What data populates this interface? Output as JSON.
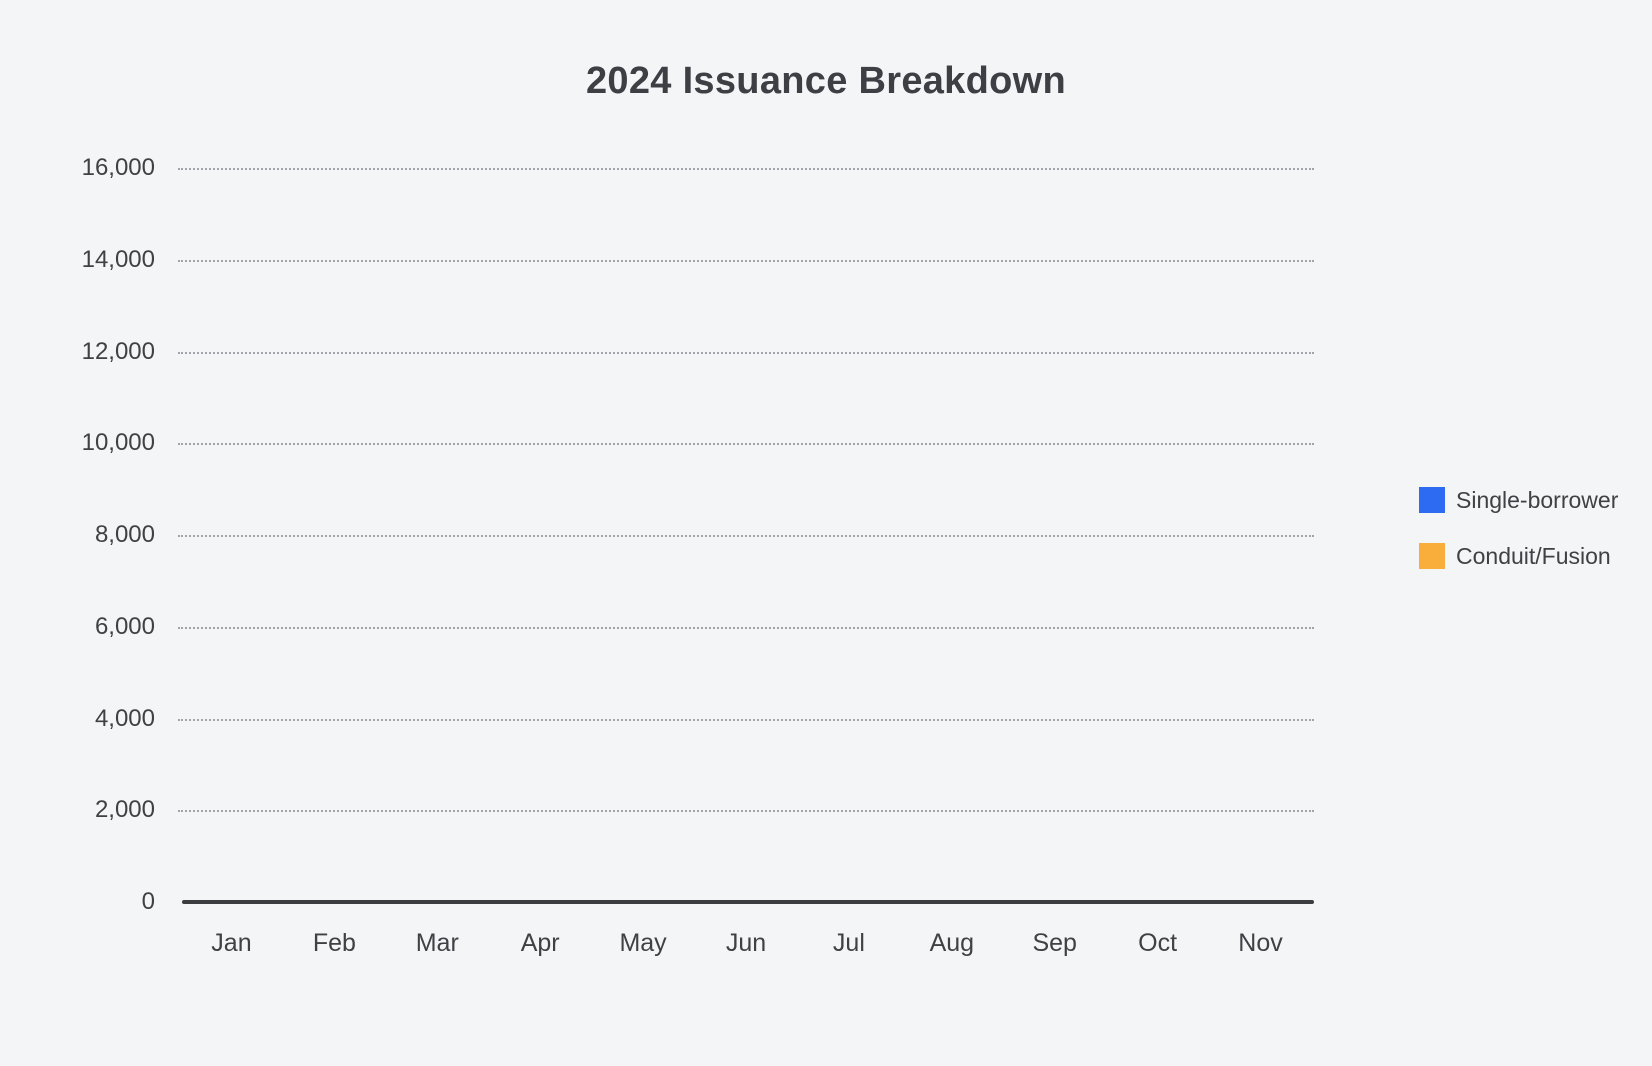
{
  "chart": {
    "title": "2024 Issuance Breakdown",
    "background_color": "#f4f5f7",
    "axis_line_color": "#3c3d41",
    "gridline_color": "#a2a3a9",
    "text_color": "#3f4145",
    "legend": [
      {
        "label": "Single-borrower",
        "color": "#2d6bf2"
      },
      {
        "label": "Conduit/Fusion",
        "color": "#f9ae3b"
      }
    ]
  },
  "chart_data": {
    "type": "bar",
    "stacked": true,
    "title": "2024 Issuance Breakdown",
    "categories": [
      "Jan",
      "Feb",
      "Mar",
      "Apr",
      "May",
      "Jun",
      "Jul",
      "Aug",
      "Sep",
      "Oct",
      "Nov"
    ],
    "series": [
      {
        "name": "Single-borrower",
        "color": "#2d6bf2",
        "values": []
      },
      {
        "name": "Conduit/Fusion",
        "color": "#f9ae3b",
        "values": []
      }
    ],
    "no_data_rendered": true,
    "xlabel": "",
    "ylabel": "",
    "ylim": [
      0,
      16000
    ],
    "y_ticks": [
      0,
      2000,
      4000,
      6000,
      8000,
      10000,
      12000,
      14000,
      16000
    ],
    "y_tick_labels": [
      "0",
      "2,000",
      "4,000",
      "6,000",
      "8,000",
      "10,000",
      "12,000",
      "14,000",
      "16,000"
    ],
    "grid": "horizontal-dotted",
    "legend_position": "right"
  }
}
